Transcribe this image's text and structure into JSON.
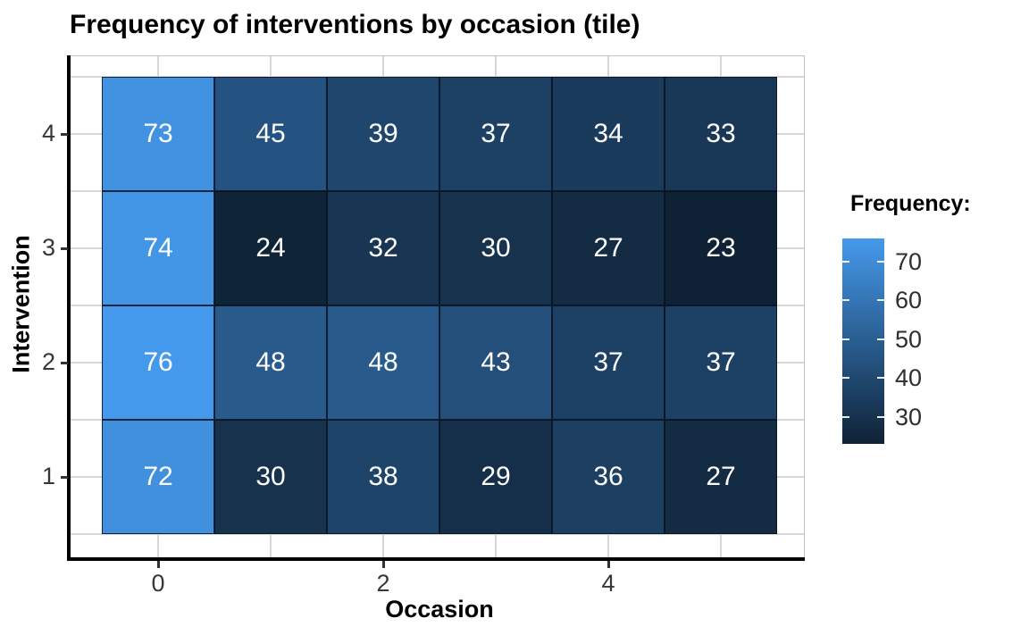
{
  "title": "Frequency of interventions by occasion (tile)",
  "colors": {
    "tile_low": "#0F2235",
    "tile_high": "#4599EC",
    "grid": "#D6D6D6",
    "panel_border": "#C3C3C3",
    "axis_line": "#000000",
    "tile_text": "#FFFFFF"
  },
  "chart_data": {
    "type": "heatmap",
    "title": "Frequency of interventions by occasion (tile)",
    "xlabel": "Occasion",
    "ylabel": "Intervention",
    "x_values": [
      0,
      1,
      2,
      3,
      4,
      5
    ],
    "y_values": [
      4,
      3,
      2,
      1
    ],
    "x_tick_labels": [
      "0",
      "2",
      "4"
    ],
    "x_tick_positions": [
      0,
      2,
      4
    ],
    "y_tick_labels": [
      "4",
      "3",
      "2",
      "1"
    ],
    "y_tick_positions": [
      4,
      3,
      2,
      1
    ],
    "xlim": [
      -0.8,
      5.8
    ],
    "ylim": [
      0.3,
      4.7
    ],
    "grid": true,
    "series": [
      {
        "name": "Intervention 4",
        "y": 4,
        "values": [
          73,
          45,
          39,
          37,
          34,
          33
        ]
      },
      {
        "name": "Intervention 3",
        "y": 3,
        "values": [
          74,
          24,
          32,
          30,
          27,
          23
        ]
      },
      {
        "name": "Intervention 2",
        "y": 2,
        "values": [
          76,
          48,
          48,
          43,
          37,
          37
        ]
      },
      {
        "name": "Intervention 1",
        "y": 1,
        "values": [
          72,
          30,
          38,
          29,
          36,
          27
        ]
      }
    ],
    "legend": {
      "title": "Frequency:",
      "position": "right",
      "tick_labels": [
        "70",
        "60",
        "50",
        "40",
        "30"
      ],
      "tick_values": [
        70,
        60,
        50,
        40,
        30
      ],
      "domain": [
        23,
        76
      ]
    }
  }
}
